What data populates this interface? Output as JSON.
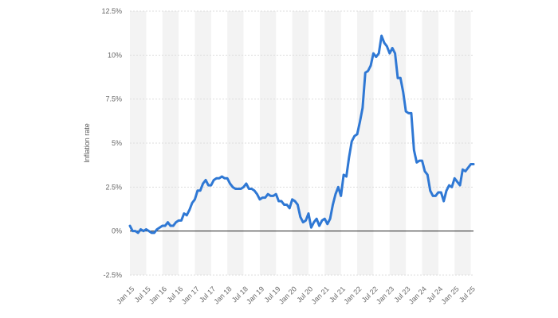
{
  "chart_data": {
    "type": "line",
    "xlabel": "",
    "ylabel": "Inflation rate",
    "ylim": [
      -2.5,
      12.5
    ],
    "y_ticks": [
      -2.5,
      0,
      2.5,
      5,
      7.5,
      10,
      12.5
    ],
    "y_tick_labels": [
      "-2.5%",
      "0%",
      "2.5%",
      "5%",
      "7.5%",
      "10%",
      "12.5%"
    ],
    "x_tick_labels": [
      "Jan 15",
      "Jul 15",
      "Jan 16",
      "Jul 16",
      "Jan 17",
      "Jul 17",
      "Jan 18",
      "Jul 18",
      "Jan 19",
      "Jul 19",
      "Jan 20",
      "Jul 20",
      "Jan 21",
      "Jul 21",
      "Jan 22",
      "Jul 22",
      "Jan 23",
      "Jul 23",
      "Jan 24",
      "Jul 24",
      "Jan 25",
      "Jul 25"
    ],
    "grid": true,
    "colors": {
      "line": "#2f78d4",
      "band": "#f3f3f3",
      "grid": "#dddddd",
      "zero_line": "#222222"
    },
    "series": [
      {
        "start": "Jan 2015",
        "values": [
          0.3,
          0.0,
          0.0,
          -0.1,
          0.1,
          0.0,
          0.1,
          0.0,
          -0.1,
          -0.1,
          0.1,
          0.2,
          0.3,
          0.3,
          0.5,
          0.3,
          0.3,
          0.5,
          0.6,
          0.6,
          1.0,
          0.9,
          1.2,
          1.6,
          1.8,
          2.3,
          2.3,
          2.7,
          2.9,
          2.6,
          2.6,
          2.9,
          3.0,
          3.0,
          3.1,
          3.0,
          3.0,
          2.7,
          2.5,
          2.4,
          2.4,
          2.4,
          2.5,
          2.7,
          2.4,
          2.4,
          2.3,
          2.1,
          1.8,
          1.9,
          1.9,
          2.1,
          2.0,
          2.0,
          2.1,
          1.7,
          1.7,
          1.5,
          1.5,
          1.3,
          1.8,
          1.7,
          1.5,
          0.8,
          0.5,
          0.6,
          1.0,
          0.2,
          0.5,
          0.7,
          0.3,
          0.6,
          0.7,
          0.4,
          0.7,
          1.5,
          2.1,
          2.5,
          2.0,
          3.2,
          3.1,
          4.2,
          5.1,
          5.4,
          5.5,
          6.2,
          7.0,
          9.0,
          9.1,
          9.4,
          10.1,
          9.9,
          10.1,
          11.1,
          10.7,
          10.5,
          10.1,
          10.4,
          10.1,
          8.7,
          8.7,
          7.9,
          6.8,
          6.7,
          6.7,
          4.6,
          3.9,
          4.0,
          4.0,
          3.4,
          3.2,
          2.3,
          2.0,
          2.0,
          2.2,
          2.2,
          1.7,
          2.3,
          2.6,
          2.5,
          3.0,
          2.8,
          2.6,
          3.5,
          3.4,
          3.6,
          3.8,
          3.8
        ]
      }
    ]
  }
}
